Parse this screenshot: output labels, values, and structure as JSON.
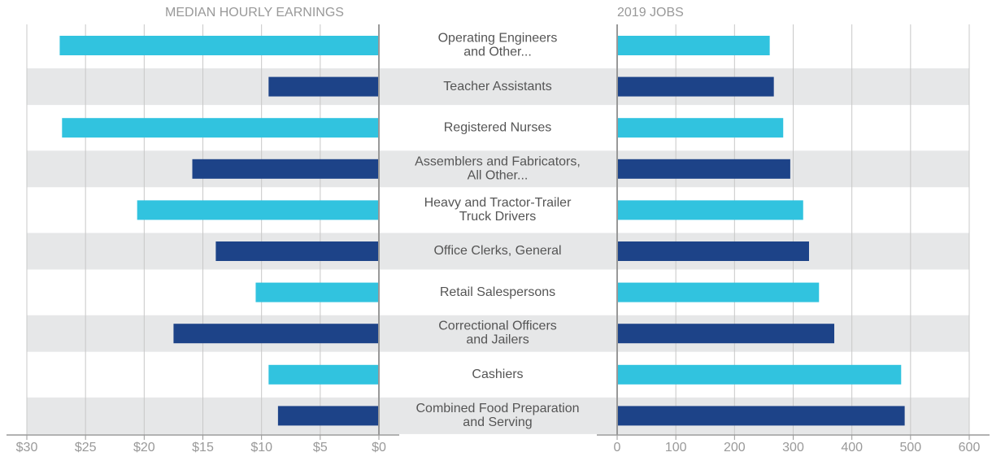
{
  "chart_data": [
    {
      "type": "bar",
      "orientation": "horizontal",
      "title": "MEDIAN HOURLY EARNINGS",
      "categories": [
        "Operating Engineers\nand Other...",
        "Teacher Assistants",
        "Registered Nurses",
        "Assemblers and Fabricators,\nAll Other...",
        "Heavy and Tractor-Trailer\nTruck Drivers",
        "Office Clerks, General",
        "Retail Salespersons",
        "Correctional Officers\nand Jailers",
        "Cashiers",
        "Combined Food Preparation\nand Serving"
      ],
      "values": [
        27.2,
        9.4,
        27.0,
        15.9,
        20.6,
        13.9,
        10.5,
        17.5,
        9.4,
        8.6
      ],
      "colors": [
        "#31c3df",
        "#1d4388",
        "#31c3df",
        "#1d4388",
        "#31c3df",
        "#1d4388",
        "#31c3df",
        "#1d4388",
        "#31c3df",
        "#1d4388"
      ],
      "xlim": [
        30,
        0
      ],
      "xticks": [
        {
          "value": 30,
          "label": "$30"
        },
        {
          "value": 25,
          "label": "$25"
        },
        {
          "value": 20,
          "label": "$20"
        },
        {
          "value": 15,
          "label": "$15"
        },
        {
          "value": 10,
          "label": "$10"
        },
        {
          "value": 5,
          "label": "$5"
        },
        {
          "value": 0,
          "label": "$0"
        }
      ],
      "grid": true
    },
    {
      "type": "bar",
      "orientation": "horizontal",
      "title": "2019 JOBS",
      "values": [
        260,
        267,
        283,
        295,
        317,
        327,
        344,
        370,
        484,
        490
      ],
      "colors": [
        "#31c3df",
        "#1d4388",
        "#31c3df",
        "#1d4388",
        "#31c3df",
        "#1d4388",
        "#31c3df",
        "#1d4388",
        "#31c3df",
        "#1d4388"
      ],
      "xlim": [
        0,
        600
      ],
      "xticks": [
        0,
        100,
        200,
        300,
        400,
        500,
        600
      ],
      "grid": true
    }
  ]
}
